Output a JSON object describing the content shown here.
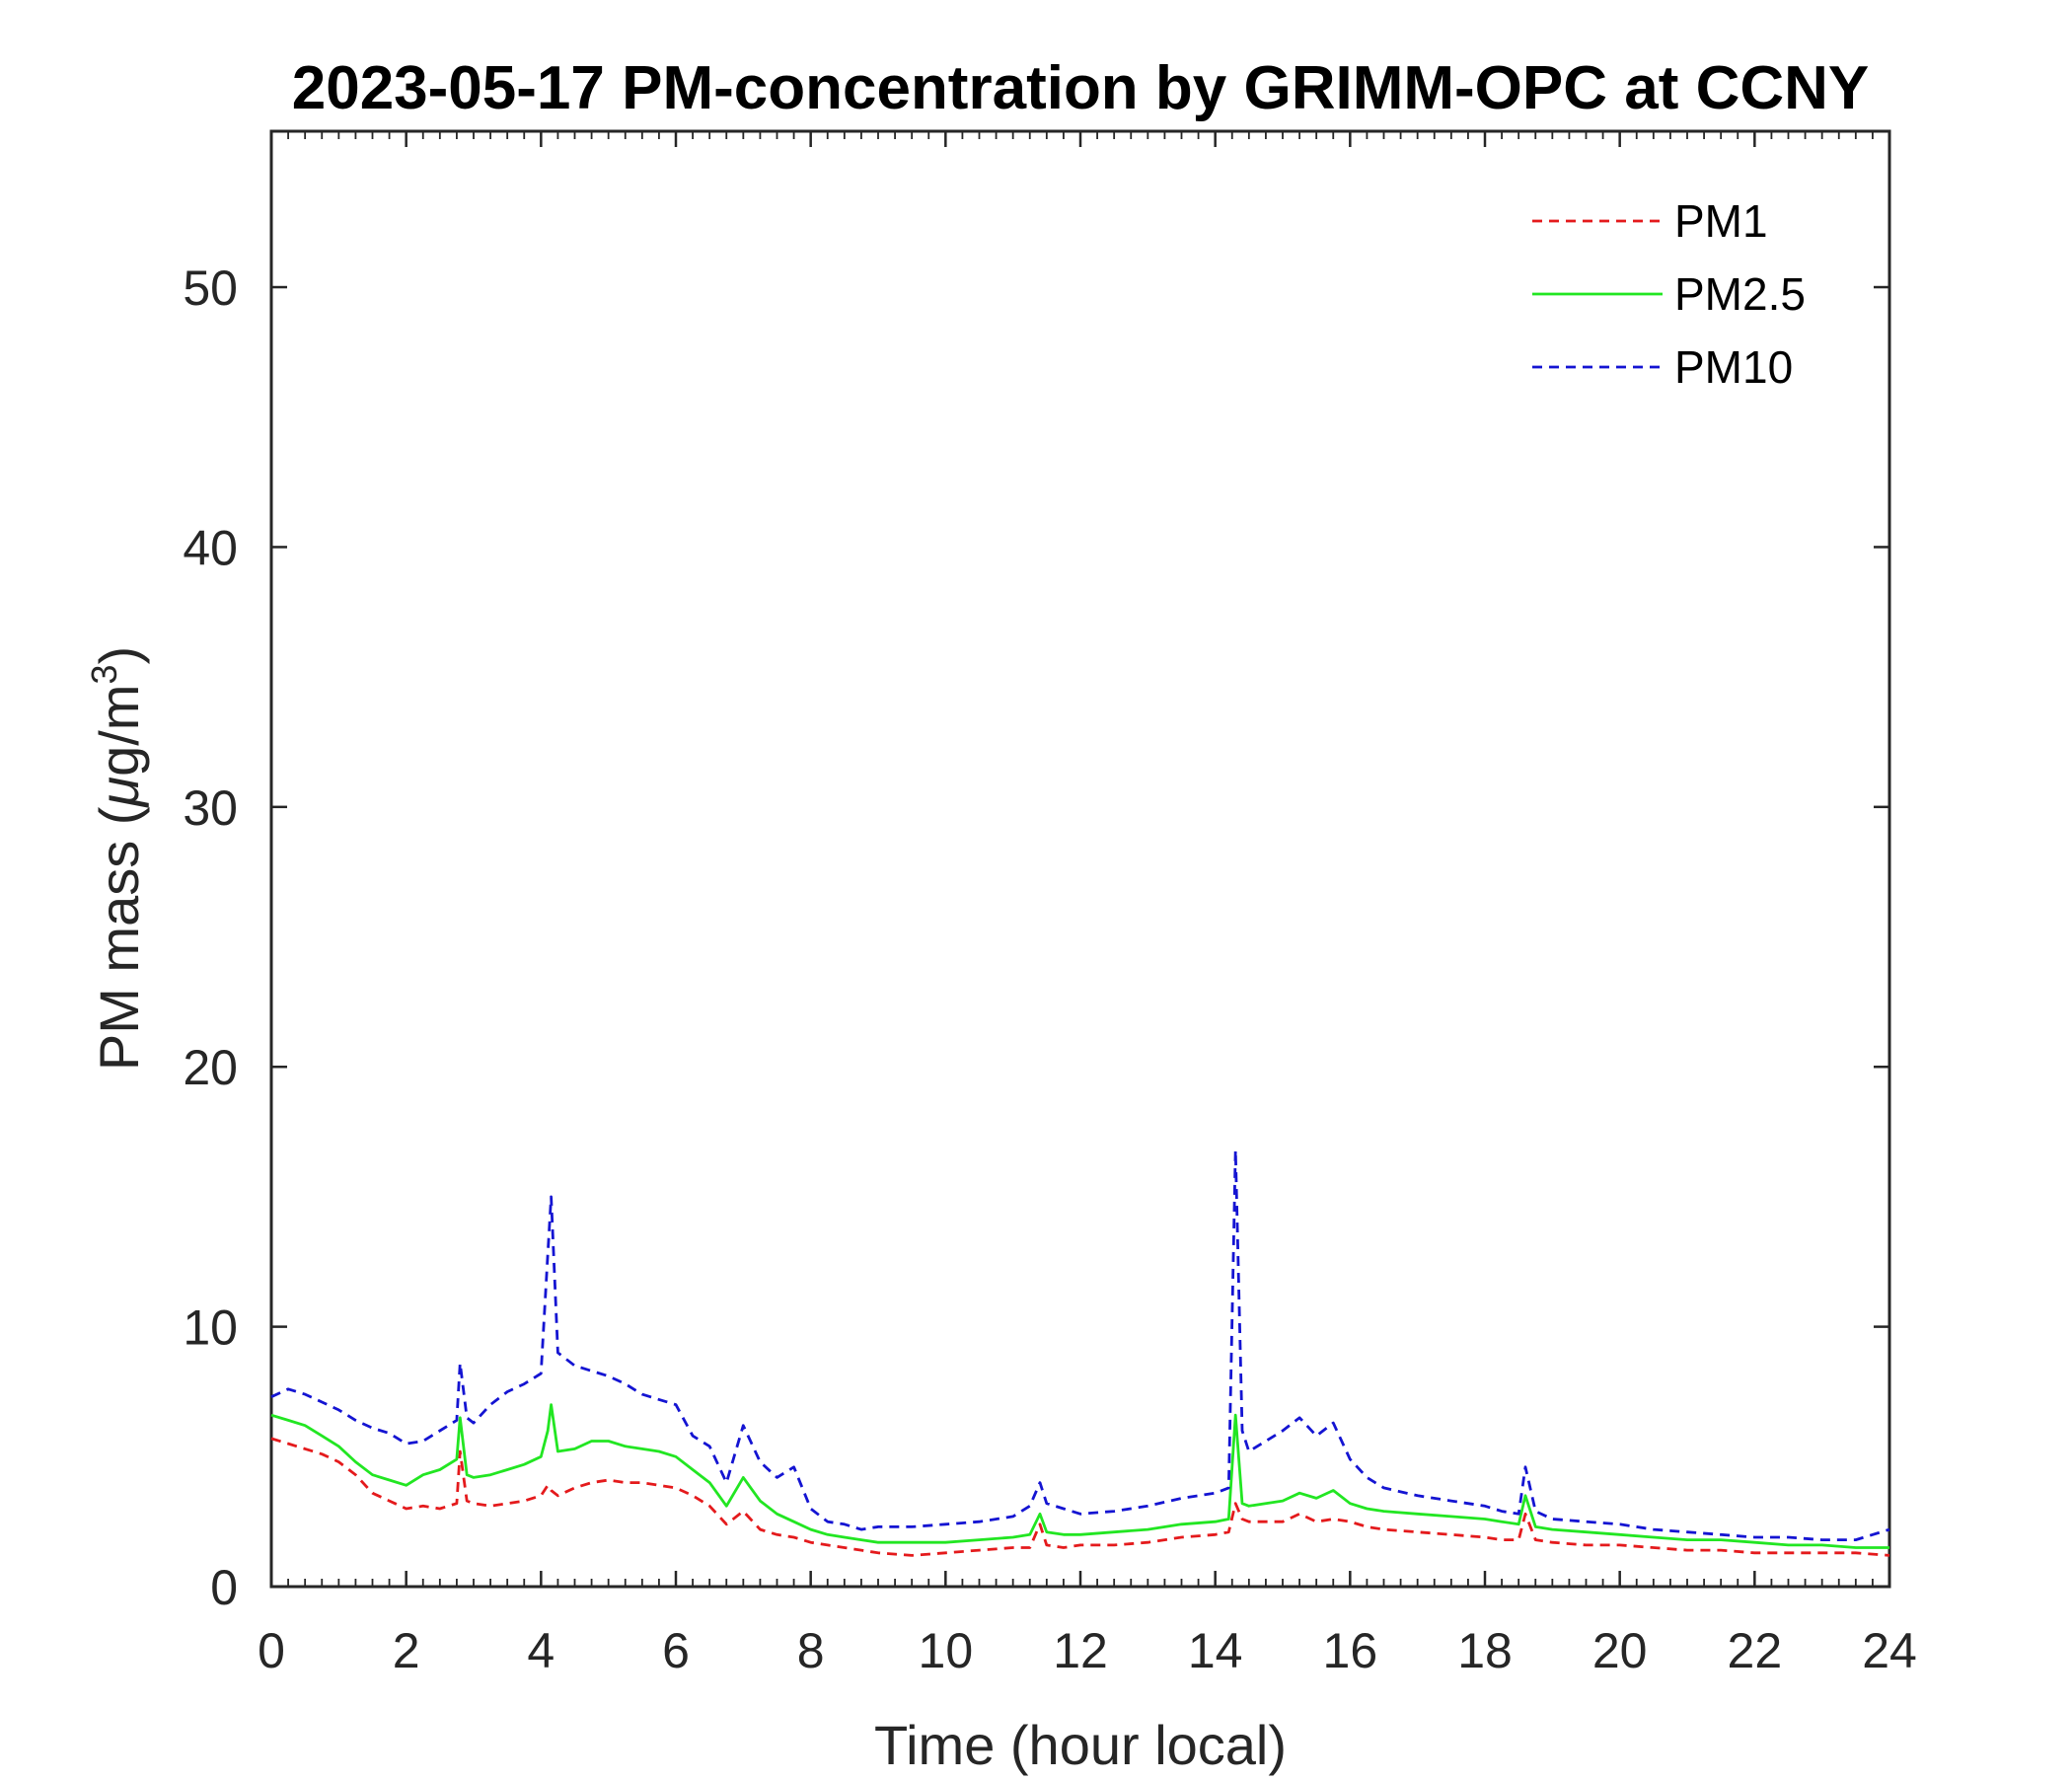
{
  "chart_data": {
    "type": "line",
    "title": "2023-05-17 PM-concentration by GRIMM-OPC at CCNY",
    "xlabel": "Time (hour local)",
    "ylabel_main": "PM mass (",
    "ylabel_mu": "μ",
    "ylabel_units": "g/m",
    "ylabel_sup": "3",
    "ylabel_close": ")",
    "xlim": [
      0,
      24
    ],
    "ylim": [
      0,
      56
    ],
    "x_ticks": [
      "0",
      "2",
      "4",
      "6",
      "8",
      "10",
      "12",
      "14",
      "16",
      "18",
      "20",
      "22",
      "24"
    ],
    "y_ticks": [
      "0",
      "10",
      "20",
      "30",
      "40",
      "50"
    ],
    "grid": false,
    "legend_position": "top-right",
    "x": [
      0,
      0.25,
      0.5,
      0.75,
      1,
      1.25,
      1.5,
      1.75,
      2,
      2.25,
      2.5,
      2.75,
      2.8,
      2.9,
      3,
      3.25,
      3.5,
      3.75,
      4,
      4.1,
      4.15,
      4.25,
      4.5,
      4.75,
      5,
      5.25,
      5.5,
      5.75,
      6,
      6.25,
      6.5,
      6.75,
      7,
      7.25,
      7.5,
      7.75,
      8,
      8.25,
      8.5,
      8.75,
      9,
      9.5,
      10,
      10.5,
      11,
      11.25,
      11.4,
      11.5,
      11.75,
      12,
      12.5,
      13,
      13.5,
      14,
      14.2,
      14.3,
      14.4,
      14.5,
      15,
      15.25,
      15.5,
      15.75,
      16,
      16.25,
      16.5,
      17,
      17.5,
      18,
      18.25,
      18.5,
      18.6,
      18.75,
      19,
      19.5,
      20,
      20.5,
      21,
      21.5,
      22,
      22.5,
      23,
      23.5,
      24
    ],
    "series": [
      {
        "name": "PM1",
        "color": "#e41a1c",
        "dash": "dashed",
        "values": [
          5.7,
          5.5,
          5.3,
          5.1,
          4.8,
          4.3,
          3.6,
          3.3,
          3.0,
          3.1,
          3.0,
          3.2,
          5.2,
          3.3,
          3.2,
          3.1,
          3.2,
          3.3,
          3.5,
          3.9,
          3.7,
          3.5,
          3.8,
          4.0,
          4.1,
          4.0,
          4.0,
          3.9,
          3.8,
          3.5,
          3.1,
          2.4,
          2.9,
          2.2,
          2.0,
          1.9,
          1.7,
          1.6,
          1.5,
          1.4,
          1.3,
          1.2,
          1.3,
          1.4,
          1.5,
          1.5,
          2.4,
          1.6,
          1.5,
          1.6,
          1.6,
          1.7,
          1.9,
          2.0,
          2.1,
          3.2,
          2.6,
          2.5,
          2.5,
          2.8,
          2.5,
          2.6,
          2.5,
          2.3,
          2.2,
          2.1,
          2.0,
          1.9,
          1.8,
          1.8,
          2.8,
          1.8,
          1.7,
          1.6,
          1.6,
          1.5,
          1.4,
          1.4,
          1.3,
          1.3,
          1.3,
          1.3,
          1.2
        ]
      },
      {
        "name": "PM2.5",
        "color": "#22e622",
        "dash": "solid",
        "values": [
          6.6,
          6.4,
          6.2,
          5.8,
          5.4,
          4.8,
          4.3,
          4.1,
          3.9,
          4.3,
          4.5,
          4.9,
          6.5,
          4.3,
          4.2,
          4.3,
          4.5,
          4.7,
          5.0,
          6.0,
          7.0,
          5.2,
          5.3,
          5.6,
          5.6,
          5.4,
          5.3,
          5.2,
          5.0,
          4.5,
          4.0,
          3.1,
          4.2,
          3.3,
          2.8,
          2.5,
          2.2,
          2.0,
          1.9,
          1.8,
          1.7,
          1.7,
          1.7,
          1.8,
          1.9,
          2.0,
          2.8,
          2.1,
          2.0,
          2.0,
          2.1,
          2.2,
          2.4,
          2.5,
          2.6,
          6.6,
          3.2,
          3.1,
          3.3,
          3.6,
          3.4,
          3.7,
          3.2,
          3.0,
          2.9,
          2.8,
          2.7,
          2.6,
          2.5,
          2.4,
          3.5,
          2.3,
          2.2,
          2.1,
          2.0,
          1.9,
          1.8,
          1.8,
          1.7,
          1.6,
          1.6,
          1.5,
          1.5
        ]
      },
      {
        "name": "PM10",
        "color": "#1414d2",
        "dash": "dashed",
        "values": [
          7.3,
          7.6,
          7.4,
          7.1,
          6.8,
          6.4,
          6.1,
          5.9,
          5.5,
          5.6,
          6.0,
          6.4,
          8.6,
          6.5,
          6.3,
          7.0,
          7.5,
          7.8,
          8.2,
          12.8,
          15.0,
          9.0,
          8.5,
          8.3,
          8.1,
          7.8,
          7.4,
          7.2,
          7.0,
          5.8,
          5.4,
          4.0,
          6.2,
          4.8,
          4.2,
          4.6,
          3.0,
          2.5,
          2.4,
          2.2,
          2.3,
          2.3,
          2.4,
          2.5,
          2.7,
          3.1,
          4.0,
          3.2,
          3.0,
          2.8,
          2.9,
          3.1,
          3.4,
          3.6,
          3.8,
          16.8,
          6.0,
          5.2,
          6.0,
          6.5,
          5.8,
          6.3,
          4.9,
          4.2,
          3.8,
          3.5,
          3.3,
          3.1,
          2.9,
          2.8,
          4.6,
          2.9,
          2.6,
          2.5,
          2.4,
          2.2,
          2.1,
          2.0,
          1.9,
          1.9,
          1.8,
          1.8,
          2.2
        ]
      }
    ]
  }
}
